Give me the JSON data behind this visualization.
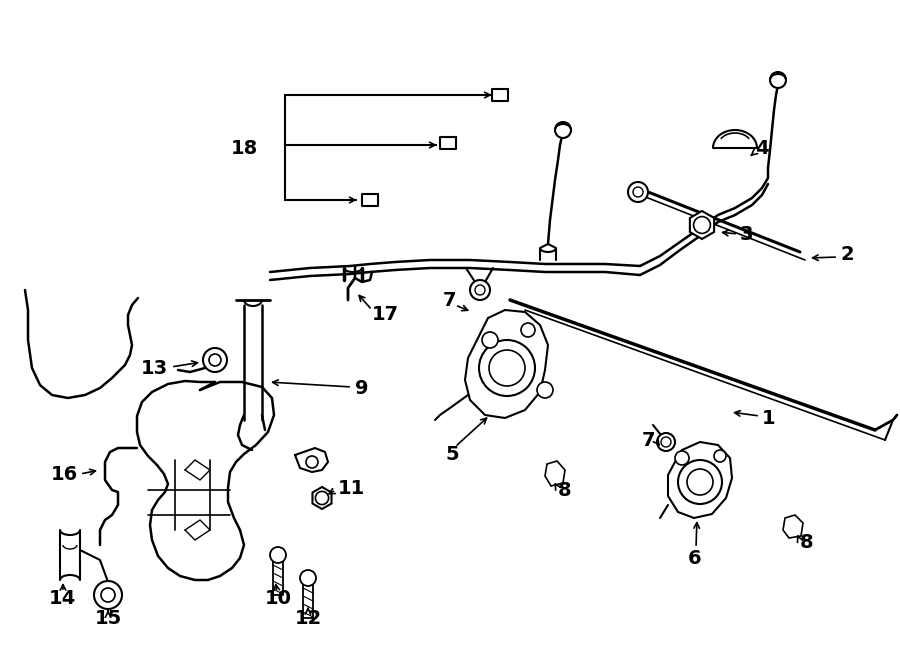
{
  "bg_color": "#ffffff",
  "line_color": "#000000",
  "figsize": [
    9.0,
    6.61
  ],
  "dpi": 100,
  "parts": {
    "wiper_blade_1": {
      "color": "#000000",
      "lw": 2.2
    },
    "wiper_arm_2": {
      "color": "#000000",
      "lw": 1.8
    },
    "label_fontsize": 13,
    "label_fontsize_small": 11
  }
}
